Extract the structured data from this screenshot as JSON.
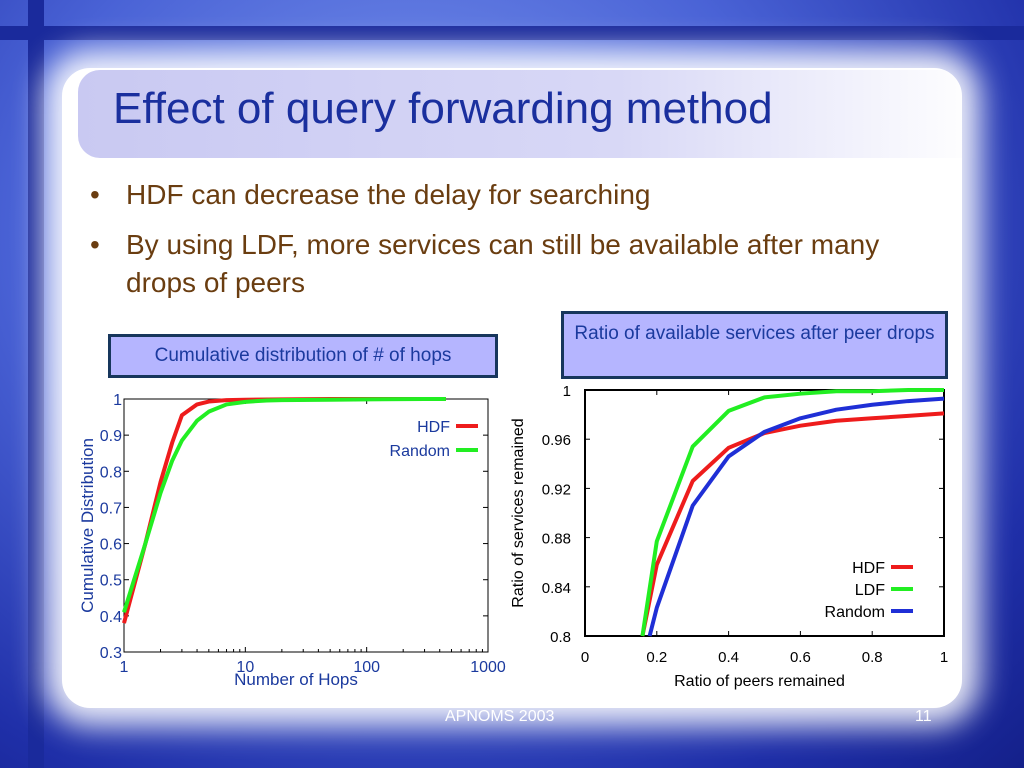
{
  "slide": {
    "title": "Effect of query forwarding method",
    "bullets": [
      "HDF can decrease the delay for searching",
      "By using LDF, more services can still be available after many drops of peers"
    ],
    "footer_center": "APNOMS 2003",
    "page_number": "11"
  },
  "captions": {
    "left": "Cumulative distribution of # of hops",
    "right": "Ratio of available services after peer drops"
  },
  "colors": {
    "hdf": "#ee1c1c",
    "ldf": "#22ee22",
    "random_left": "#22ee22",
    "random_right": "#1f2fd6",
    "caption_bg": "#b5b5ff",
    "title": "#1a2f9e",
    "bullet_text": "#6a3d10"
  },
  "chart_data": [
    {
      "type": "line",
      "xscale": "log",
      "xlabel": "Number of Hops",
      "ylabel": "Cumulative Distribution",
      "xlim": [
        1,
        1000
      ],
      "ylim": [
        0.3,
        1
      ],
      "xticks": [
        1,
        10,
        100,
        1000
      ],
      "yticks": [
        0.3,
        0.4,
        0.5,
        0.6,
        0.7,
        0.8,
        0.9,
        1
      ],
      "legend": "top-right",
      "series": [
        {
          "name": "HDF",
          "color": "#ee1c1c",
          "x": [
            1,
            1.5,
            2,
            2.5,
            3,
            4,
            5,
            7,
            10,
            20,
            50,
            100,
            300,
            450
          ],
          "y": [
            0.38,
            0.6,
            0.77,
            0.88,
            0.955,
            0.985,
            0.993,
            0.997,
            0.998,
            0.999,
            1,
            1,
            1,
            1
          ]
        },
        {
          "name": "Random",
          "color": "#22ee22",
          "x": [
            1,
            1.5,
            2,
            2.5,
            3,
            4,
            5,
            7,
            10,
            15,
            20,
            50,
            100,
            300,
            450
          ],
          "y": [
            0.41,
            0.6,
            0.74,
            0.83,
            0.885,
            0.94,
            0.965,
            0.985,
            0.992,
            0.996,
            0.997,
            0.998,
            0.999,
            1,
            1
          ]
        }
      ]
    },
    {
      "type": "line",
      "xlabel": "Ratio of peers remained",
      "ylabel": "Ratio of services remained",
      "xlim": [
        0,
        1
      ],
      "ylim": [
        0.8,
        1
      ],
      "xticks": [
        0,
        0.2,
        0.4,
        0.6,
        0.8,
        1
      ],
      "yticks": [
        0.8,
        0.84,
        0.88,
        0.92,
        0.96,
        1
      ],
      "legend": "bottom-right",
      "series": [
        {
          "name": "HDF",
          "color": "#ee1c1c",
          "x": [
            0.16,
            0.2,
            0.3,
            0.4,
            0.5,
            0.6,
            0.7,
            0.8,
            0.9,
            1.0
          ],
          "y": [
            0.8,
            0.858,
            0.926,
            0.953,
            0.965,
            0.971,
            0.975,
            0.977,
            0.979,
            0.981
          ]
        },
        {
          "name": "LDF",
          "color": "#22ee22",
          "x": [
            0.16,
            0.2,
            0.3,
            0.4,
            0.5,
            0.6,
            0.7,
            0.8,
            0.9,
            1.0
          ],
          "y": [
            0.8,
            0.877,
            0.954,
            0.983,
            0.994,
            0.997,
            0.999,
            0.999,
            1.0,
            1.0
          ]
        },
        {
          "name": "Random",
          "color": "#1f2fd6",
          "x": [
            0.18,
            0.2,
            0.3,
            0.4,
            0.5,
            0.6,
            0.7,
            0.8,
            0.9,
            1.0
          ],
          "y": [
            0.8,
            0.823,
            0.906,
            0.946,
            0.966,
            0.977,
            0.984,
            0.988,
            0.991,
            0.993
          ]
        }
      ]
    }
  ]
}
